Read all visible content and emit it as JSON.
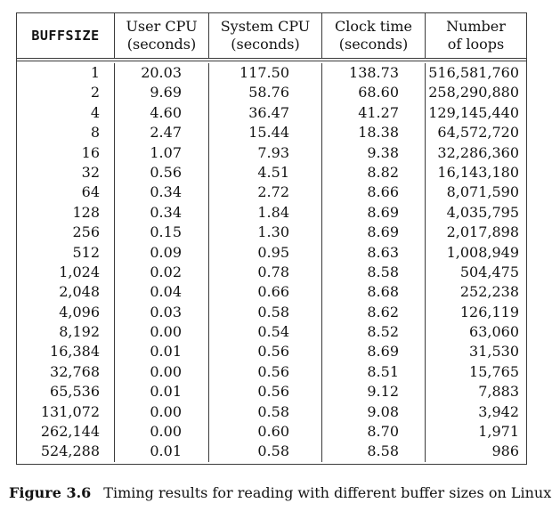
{
  "table": {
    "columns": [
      {
        "id": "buffsize",
        "line1": "BUFFSIZE",
        "line2": ""
      },
      {
        "id": "user-cpu",
        "line1": "User CPU",
        "line2": "(seconds)"
      },
      {
        "id": "system-cpu",
        "line1": "System CPU",
        "line2": "(seconds)"
      },
      {
        "id": "clock-time",
        "line1": "Clock time",
        "line2": "(seconds)"
      },
      {
        "id": "loops",
        "line1": "Number",
        "line2": "of loops"
      }
    ],
    "rows": [
      [
        "1",
        "20.03",
        "117.50",
        "138.73",
        "516,581,760"
      ],
      [
        "2",
        "9.69",
        "58.76",
        "68.60",
        "258,290,880"
      ],
      [
        "4",
        "4.60",
        "36.47",
        "41.27",
        "129,145,440"
      ],
      [
        "8",
        "2.47",
        "15.44",
        "18.38",
        "64,572,720"
      ],
      [
        "16",
        "1.07",
        "7.93",
        "9.38",
        "32,286,360"
      ],
      [
        "32",
        "0.56",
        "4.51",
        "8.82",
        "16,143,180"
      ],
      [
        "64",
        "0.34",
        "2.72",
        "8.66",
        "8,071,590"
      ],
      [
        "128",
        "0.34",
        "1.84",
        "8.69",
        "4,035,795"
      ],
      [
        "256",
        "0.15",
        "1.30",
        "8.69",
        "2,017,898"
      ],
      [
        "512",
        "0.09",
        "0.95",
        "8.63",
        "1,008,949"
      ],
      [
        "1,024",
        "0.02",
        "0.78",
        "8.58",
        "504,475"
      ],
      [
        "2,048",
        "0.04",
        "0.66",
        "8.68",
        "252,238"
      ],
      [
        "4,096",
        "0.03",
        "0.58",
        "8.62",
        "126,119"
      ],
      [
        "8,192",
        "0.00",
        "0.54",
        "8.52",
        "63,060"
      ],
      [
        "16,384",
        "0.01",
        "0.56",
        "8.69",
        "31,530"
      ],
      [
        "32,768",
        "0.00",
        "0.56",
        "8.51",
        "15,765"
      ],
      [
        "65,536",
        "0.01",
        "0.56",
        "9.12",
        "7,883"
      ],
      [
        "131,072",
        "0.00",
        "0.58",
        "9.08",
        "3,942"
      ],
      [
        "262,144",
        "0.00",
        "0.60",
        "8.70",
        "1,971"
      ],
      [
        "524,288",
        "0.01",
        "0.58",
        "8.58",
        "986"
      ]
    ]
  },
  "caption": {
    "label": "Figure 3.6",
    "text": "Timing results for reading with different buffer sizes on Linux"
  },
  "colors": {
    "text": "#121212",
    "border": "#3b3b3b",
    "background": "#ffffff"
  }
}
